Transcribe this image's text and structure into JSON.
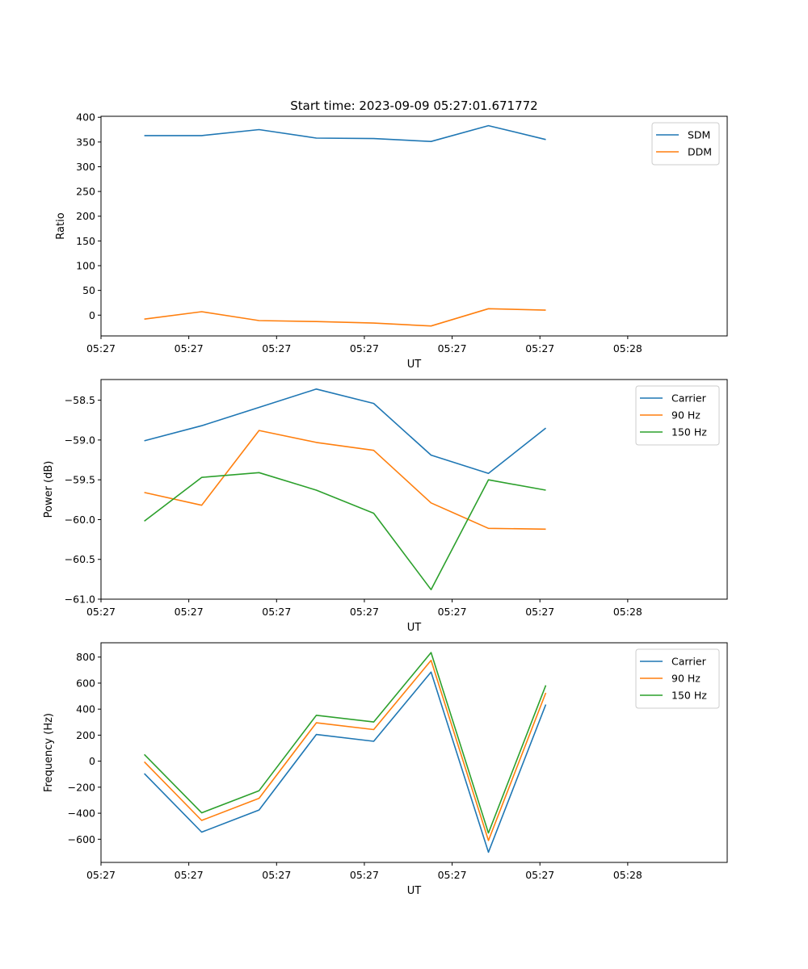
{
  "figure_title": "Start time: 2023-09-09 05:27:01.671772",
  "chart_data": [
    {
      "type": "line",
      "title": "Start time: 2023-09-09 05:27:01.671772",
      "xlabel": "UT",
      "ylabel": "Ratio",
      "xlim": [
        0,
        21.4
      ],
      "x_ticks": [
        {
          "value": 0,
          "label": "05:27"
        },
        {
          "value": 3,
          "label": "05:27"
        },
        {
          "value": 6,
          "label": "05:27"
        },
        {
          "value": 9,
          "label": "05:27"
        },
        {
          "value": 12,
          "label": "05:27"
        },
        {
          "value": 15,
          "label": "05:27"
        },
        {
          "value": 18,
          "label": "05:28"
        }
      ],
      "ylim": [
        -42,
        402
      ],
      "y_ticks": [
        0,
        50,
        100,
        150,
        200,
        250,
        300,
        350,
        400
      ],
      "y_tick_labels": [
        "0",
        "50",
        "100",
        "150",
        "200",
        "250",
        "300",
        "350",
        "400"
      ],
      "legend": "top-right",
      "x": [
        1.48,
        3.44,
        5.4,
        7.36,
        9.32,
        11.28,
        13.24,
        15.2
      ],
      "series": [
        {
          "name": "SDM",
          "color": "#1f77b4",
          "values": [
            363,
            363,
            375,
            358,
            357,
            351,
            383,
            355
          ]
        },
        {
          "name": "DDM",
          "color": "#ff7f0e",
          "values": [
            -8,
            7,
            -11,
            -13,
            -16,
            -22,
            13,
            10
          ]
        }
      ]
    },
    {
      "type": "line",
      "xlabel": "UT",
      "ylabel": "Power (dB)",
      "xlim": [
        0,
        21.4
      ],
      "x_ticks": [
        {
          "value": 0,
          "label": "05:27"
        },
        {
          "value": 3,
          "label": "05:27"
        },
        {
          "value": 6,
          "label": "05:27"
        },
        {
          "value": 9,
          "label": "05:27"
        },
        {
          "value": 12,
          "label": "05:27"
        },
        {
          "value": 15,
          "label": "05:27"
        },
        {
          "value": 18,
          "label": "05:28"
        }
      ],
      "ylim": [
        -61.0,
        -58.24
      ],
      "y_ticks": [
        -61.0,
        -60.5,
        -60.0,
        -59.5,
        -59.0,
        -58.5
      ],
      "y_tick_labels": [
        "−61.0",
        "−60.5",
        "−60.0",
        "−59.5",
        "−59.0",
        "−58.5"
      ],
      "legend": "top-right",
      "x": [
        1.48,
        3.44,
        5.4,
        7.36,
        9.32,
        11.28,
        13.24,
        15.2
      ],
      "series": [
        {
          "name": "Carrier",
          "color": "#1f77b4",
          "values": [
            -59.01,
            -58.82,
            -58.59,
            -58.36,
            -58.54,
            -59.19,
            -59.42,
            -58.85
          ]
        },
        {
          "name": "90 Hz",
          "color": "#ff7f0e",
          "values": [
            -59.66,
            -59.82,
            -58.88,
            -59.03,
            -59.13,
            -59.79,
            -60.11,
            -60.12
          ]
        },
        {
          "name": "150 Hz",
          "color": "#2ca02c",
          "values": [
            -60.02,
            -59.47,
            -59.41,
            -59.63,
            -59.92,
            -60.88,
            -59.5,
            -59.63
          ]
        }
      ]
    },
    {
      "type": "line",
      "xlabel": "UT",
      "ylabel": "Frequency (Hz)",
      "xlim": [
        0,
        21.4
      ],
      "x_ticks": [
        {
          "value": 0,
          "label": "05:27"
        },
        {
          "value": 3,
          "label": "05:27"
        },
        {
          "value": 6,
          "label": "05:27"
        },
        {
          "value": 9,
          "label": "05:27"
        },
        {
          "value": 12,
          "label": "05:27"
        },
        {
          "value": 15,
          "label": "05:27"
        },
        {
          "value": 18,
          "label": "05:28"
        }
      ],
      "ylim": [
        -778,
        910
      ],
      "y_ticks": [
        -600,
        -400,
        -200,
        0,
        200,
        400,
        600,
        800
      ],
      "y_tick_labels": [
        "−600",
        "−400",
        "−200",
        "0",
        "200",
        "400",
        "600",
        "800"
      ],
      "legend": "top-right",
      "x": [
        1.48,
        3.44,
        5.4,
        7.36,
        9.32,
        11.28,
        13.24,
        15.2
      ],
      "series": [
        {
          "name": "Carrier",
          "color": "#1f77b4",
          "values": [
            -95,
            -545,
            -375,
            205,
            153,
            685,
            -700,
            435
          ]
        },
        {
          "name": "90 Hz",
          "color": "#ff7f0e",
          "values": [
            -5,
            -455,
            -285,
            295,
            243,
            775,
            -610,
            525
          ]
        },
        {
          "name": "150 Hz",
          "color": "#2ca02c",
          "values": [
            52,
            -397,
            -227,
            353,
            301,
            835,
            -552,
            583
          ]
        }
      ]
    }
  ]
}
